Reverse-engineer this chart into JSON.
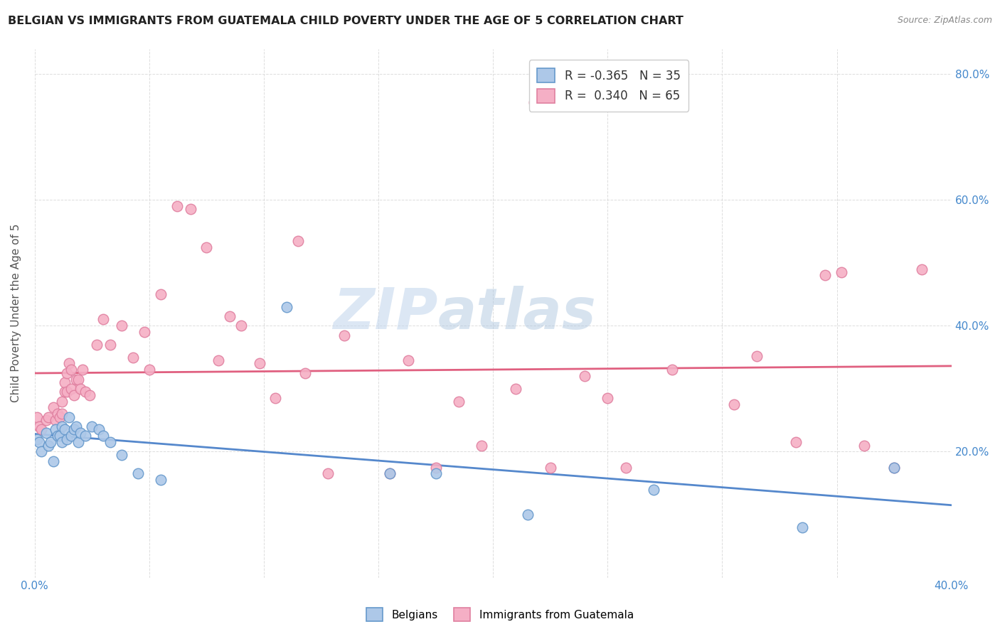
{
  "title": "BELGIAN VS IMMIGRANTS FROM GUATEMALA CHILD POVERTY UNDER THE AGE OF 5 CORRELATION CHART",
  "source": "Source: ZipAtlas.com",
  "ylabel": "Child Poverty Under the Age of 5",
  "xlim": [
    0.0,
    0.4
  ],
  "ylim": [
    0.0,
    0.84
  ],
  "x_ticks": [
    0.0,
    0.05,
    0.1,
    0.15,
    0.2,
    0.25,
    0.3,
    0.35,
    0.4
  ],
  "x_tick_labels_show": [
    "0.0%",
    "",
    "",
    "",
    "",
    "",
    "",
    "",
    "40.0%"
  ],
  "y_ticks_left": [
    0.0,
    0.2,
    0.4,
    0.6,
    0.8
  ],
  "y_tick_labels_left": [
    "",
    "",
    "",
    "",
    ""
  ],
  "y_ticks_right": [
    0.2,
    0.4,
    0.6,
    0.8
  ],
  "y_tick_labels_right": [
    "20.0%",
    "40.0%",
    "60.0%",
    "80.0%"
  ],
  "belgian_color": "#adc8e8",
  "guatemalan_color": "#f5afc5",
  "belgian_edge_color": "#6699cc",
  "guatemalan_edge_color": "#e080a0",
  "belgian_line_color": "#5588cc",
  "guatemalan_line_color": "#e06080",
  "watermark_line1": "ZIP",
  "watermark_line2": "atlas",
  "legend_R_belgian": "-0.365",
  "legend_N_belgian": "35",
  "legend_R_guatemalan": "0.340",
  "legend_N_guatemalan": "65",
  "legend_label_belgian": "Belgians",
  "legend_label_guatemalan": "Immigrants from Guatemala",
  "belgian_x": [
    0.001,
    0.002,
    0.003,
    0.005,
    0.006,
    0.007,
    0.008,
    0.009,
    0.01,
    0.011,
    0.012,
    0.012,
    0.013,
    0.014,
    0.015,
    0.016,
    0.017,
    0.018,
    0.019,
    0.02,
    0.022,
    0.025,
    0.028,
    0.03,
    0.033,
    0.038,
    0.045,
    0.055,
    0.11,
    0.155,
    0.175,
    0.215,
    0.27,
    0.335,
    0.375
  ],
  "belgian_y": [
    0.22,
    0.215,
    0.2,
    0.23,
    0.21,
    0.215,
    0.185,
    0.235,
    0.225,
    0.225,
    0.24,
    0.215,
    0.235,
    0.22,
    0.255,
    0.225,
    0.235,
    0.24,
    0.215,
    0.23,
    0.225,
    0.24,
    0.235,
    0.225,
    0.215,
    0.195,
    0.165,
    0.155,
    0.43,
    0.165,
    0.165,
    0.1,
    0.14,
    0.08,
    0.175
  ],
  "guatemalan_x": [
    0.001,
    0.002,
    0.003,
    0.005,
    0.006,
    0.008,
    0.009,
    0.01,
    0.011,
    0.012,
    0.012,
    0.013,
    0.013,
    0.014,
    0.014,
    0.015,
    0.016,
    0.016,
    0.017,
    0.018,
    0.019,
    0.02,
    0.021,
    0.022,
    0.024,
    0.027,
    0.03,
    0.033,
    0.038,
    0.043,
    0.048,
    0.05,
    0.055,
    0.062,
    0.068,
    0.075,
    0.08,
    0.085,
    0.09,
    0.098,
    0.105,
    0.115,
    0.118,
    0.128,
    0.135,
    0.155,
    0.163,
    0.175,
    0.185,
    0.195,
    0.21,
    0.218,
    0.225,
    0.24,
    0.25,
    0.258,
    0.278,
    0.305,
    0.315,
    0.332,
    0.345,
    0.352,
    0.362,
    0.375,
    0.387
  ],
  "guatemalan_y": [
    0.255,
    0.24,
    0.235,
    0.25,
    0.255,
    0.27,
    0.25,
    0.26,
    0.255,
    0.26,
    0.28,
    0.295,
    0.31,
    0.295,
    0.325,
    0.34,
    0.33,
    0.3,
    0.29,
    0.315,
    0.315,
    0.3,
    0.33,
    0.295,
    0.29,
    0.37,
    0.41,
    0.37,
    0.4,
    0.35,
    0.39,
    0.33,
    0.45,
    0.59,
    0.585,
    0.525,
    0.345,
    0.415,
    0.4,
    0.34,
    0.285,
    0.535,
    0.325,
    0.165,
    0.385,
    0.165,
    0.345,
    0.175,
    0.28,
    0.21,
    0.3,
    0.755,
    0.175,
    0.32,
    0.285,
    0.175,
    0.33,
    0.275,
    0.352,
    0.215,
    0.48,
    0.485,
    0.21,
    0.175,
    0.49
  ],
  "background_color": "#ffffff",
  "grid_color": "#dddddd"
}
